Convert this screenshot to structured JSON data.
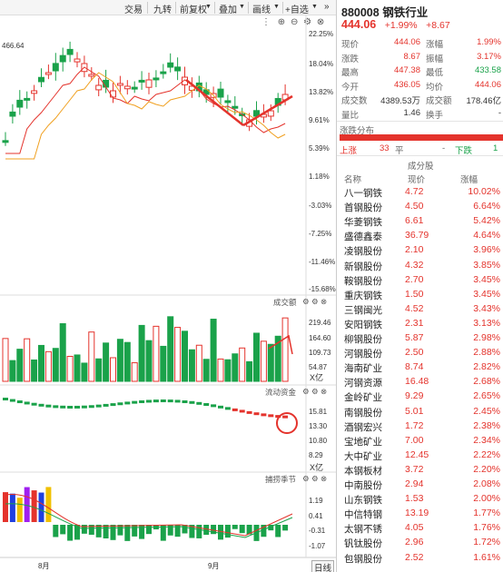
{
  "toolbar": {
    "items": [
      "交易",
      "九转",
      "前复权",
      "叠加",
      "画线"
    ],
    "self_select": "+自选",
    "more": "»"
  },
  "kline": {
    "high_marker": "466.64",
    "ytick_labels": [
      "22.25%",
      "18.04%",
      "13.82%",
      "9.61%",
      "5.39%",
      "1.18%",
      "-3.03%",
      "-7.25%",
      "-11.46%",
      "-15.68%"
    ]
  },
  "volume_panel": {
    "title": "成交额",
    "ytick_labels": [
      "219.46",
      "164.60",
      "109.73",
      "54.87"
    ],
    "unit": "X亿"
  },
  "flow_panel": {
    "title": "流动资金",
    "ytick_labels": [
      "15.81",
      "13.30",
      "10.80",
      "8.29"
    ],
    "unit": "X亿"
  },
  "season_panel": {
    "title": "捕捞季节",
    "ytick_labels": [
      "1.19",
      "0.41",
      "-0.31",
      "-1.07"
    ]
  },
  "xaxis": {
    "months": [
      "8月",
      "9月"
    ],
    "period_button": "日线"
  },
  "quote": {
    "code": "880008",
    "name": "钢铁行业",
    "price": "444.06",
    "change_pct": "+1.99%",
    "change": "+8.67",
    "stats": [
      {
        "l": "现价",
        "v": "444.06",
        "l2": "涨幅",
        "v2": "1.99%"
      },
      {
        "l": "涨跌",
        "v": "8.67",
        "l2": "振幅",
        "v2": "3.17%"
      },
      {
        "l": "最高",
        "v": "447.38",
        "l2": "最低",
        "v2": "433.58"
      },
      {
        "l": "今开",
        "v": "436.05",
        "l2": "均价",
        "v2": "444.06"
      },
      {
        "l": "成交数",
        "v": "4389.53万",
        "l2": "成交额",
        "v2": "178.46亿"
      },
      {
        "l": "量比",
        "v": "1.46",
        "l2": "换手",
        "v2": "-"
      }
    ]
  },
  "distribution": {
    "title": "涨跌分布",
    "up_label": "上涨",
    "up_count": "33",
    "flat_label": "平",
    "flat_count": "-",
    "down_label": "下跌",
    "down_count": "1"
  },
  "components": {
    "title": "成分股",
    "headers": [
      "名称",
      "现价",
      "涨幅"
    ],
    "rows": [
      {
        "name": "八一钢铁",
        "price": "4.72",
        "chg": "10.02%"
      },
      {
        "name": "首钢股份",
        "price": "4.50",
        "chg": "6.64%"
      },
      {
        "name": "华菱钢铁",
        "price": "6.61",
        "chg": "5.42%"
      },
      {
        "name": "盛德鑫泰",
        "price": "36.79",
        "chg": "4.64%"
      },
      {
        "name": "凌钢股份",
        "price": "2.10",
        "chg": "3.96%"
      },
      {
        "name": "新钢股份",
        "price": "4.32",
        "chg": "3.85%"
      },
      {
        "name": "鞍钢股份",
        "price": "2.70",
        "chg": "3.45%"
      },
      {
        "name": "重庆钢铁",
        "price": "1.50",
        "chg": "3.45%"
      },
      {
        "name": "三钢闽光",
        "price": "4.52",
        "chg": "3.43%"
      },
      {
        "name": "安阳钢铁",
        "price": "2.31",
        "chg": "3.13%"
      },
      {
        "name": "柳钢股份",
        "price": "5.87",
        "chg": "2.98%"
      },
      {
        "name": "河钢股份",
        "price": "2.50",
        "chg": "2.88%"
      },
      {
        "name": "海南矿业",
        "price": "8.74",
        "chg": "2.82%"
      },
      {
        "name": "河钢资源",
        "price": "16.48",
        "chg": "2.68%"
      },
      {
        "name": "金岭矿业",
        "price": "9.29",
        "chg": "2.65%"
      },
      {
        "name": "南钢股份",
        "price": "5.01",
        "chg": "2.45%"
      },
      {
        "name": "酒钢宏兴",
        "price": "1.72",
        "chg": "2.38%"
      },
      {
        "name": "宝地矿业",
        "price": "7.00",
        "chg": "2.34%"
      },
      {
        "name": "大中矿业",
        "price": "12.45",
        "chg": "2.22%"
      },
      {
        "name": "本钢板材",
        "price": "3.72",
        "chg": "2.20%"
      },
      {
        "name": "中南股份",
        "price": "2.94",
        "chg": "2.08%"
      },
      {
        "name": "山东钢铁",
        "price": "1.53",
        "chg": "2.00%"
      },
      {
        "name": "中信特钢",
        "price": "13.19",
        "chg": "1.77%"
      },
      {
        "name": "太钢不锈",
        "price": "4.05",
        "chg": "1.76%"
      },
      {
        "name": "钒钛股份",
        "price": "2.96",
        "chg": "1.72%"
      },
      {
        "name": "包钢股份",
        "price": "2.52",
        "chg": "1.61%"
      }
    ]
  },
  "colors": {
    "up": "#e4332c",
    "down": "#1aa24a",
    "ma5": "#e4332c",
    "ma10": "#f0a020"
  }
}
